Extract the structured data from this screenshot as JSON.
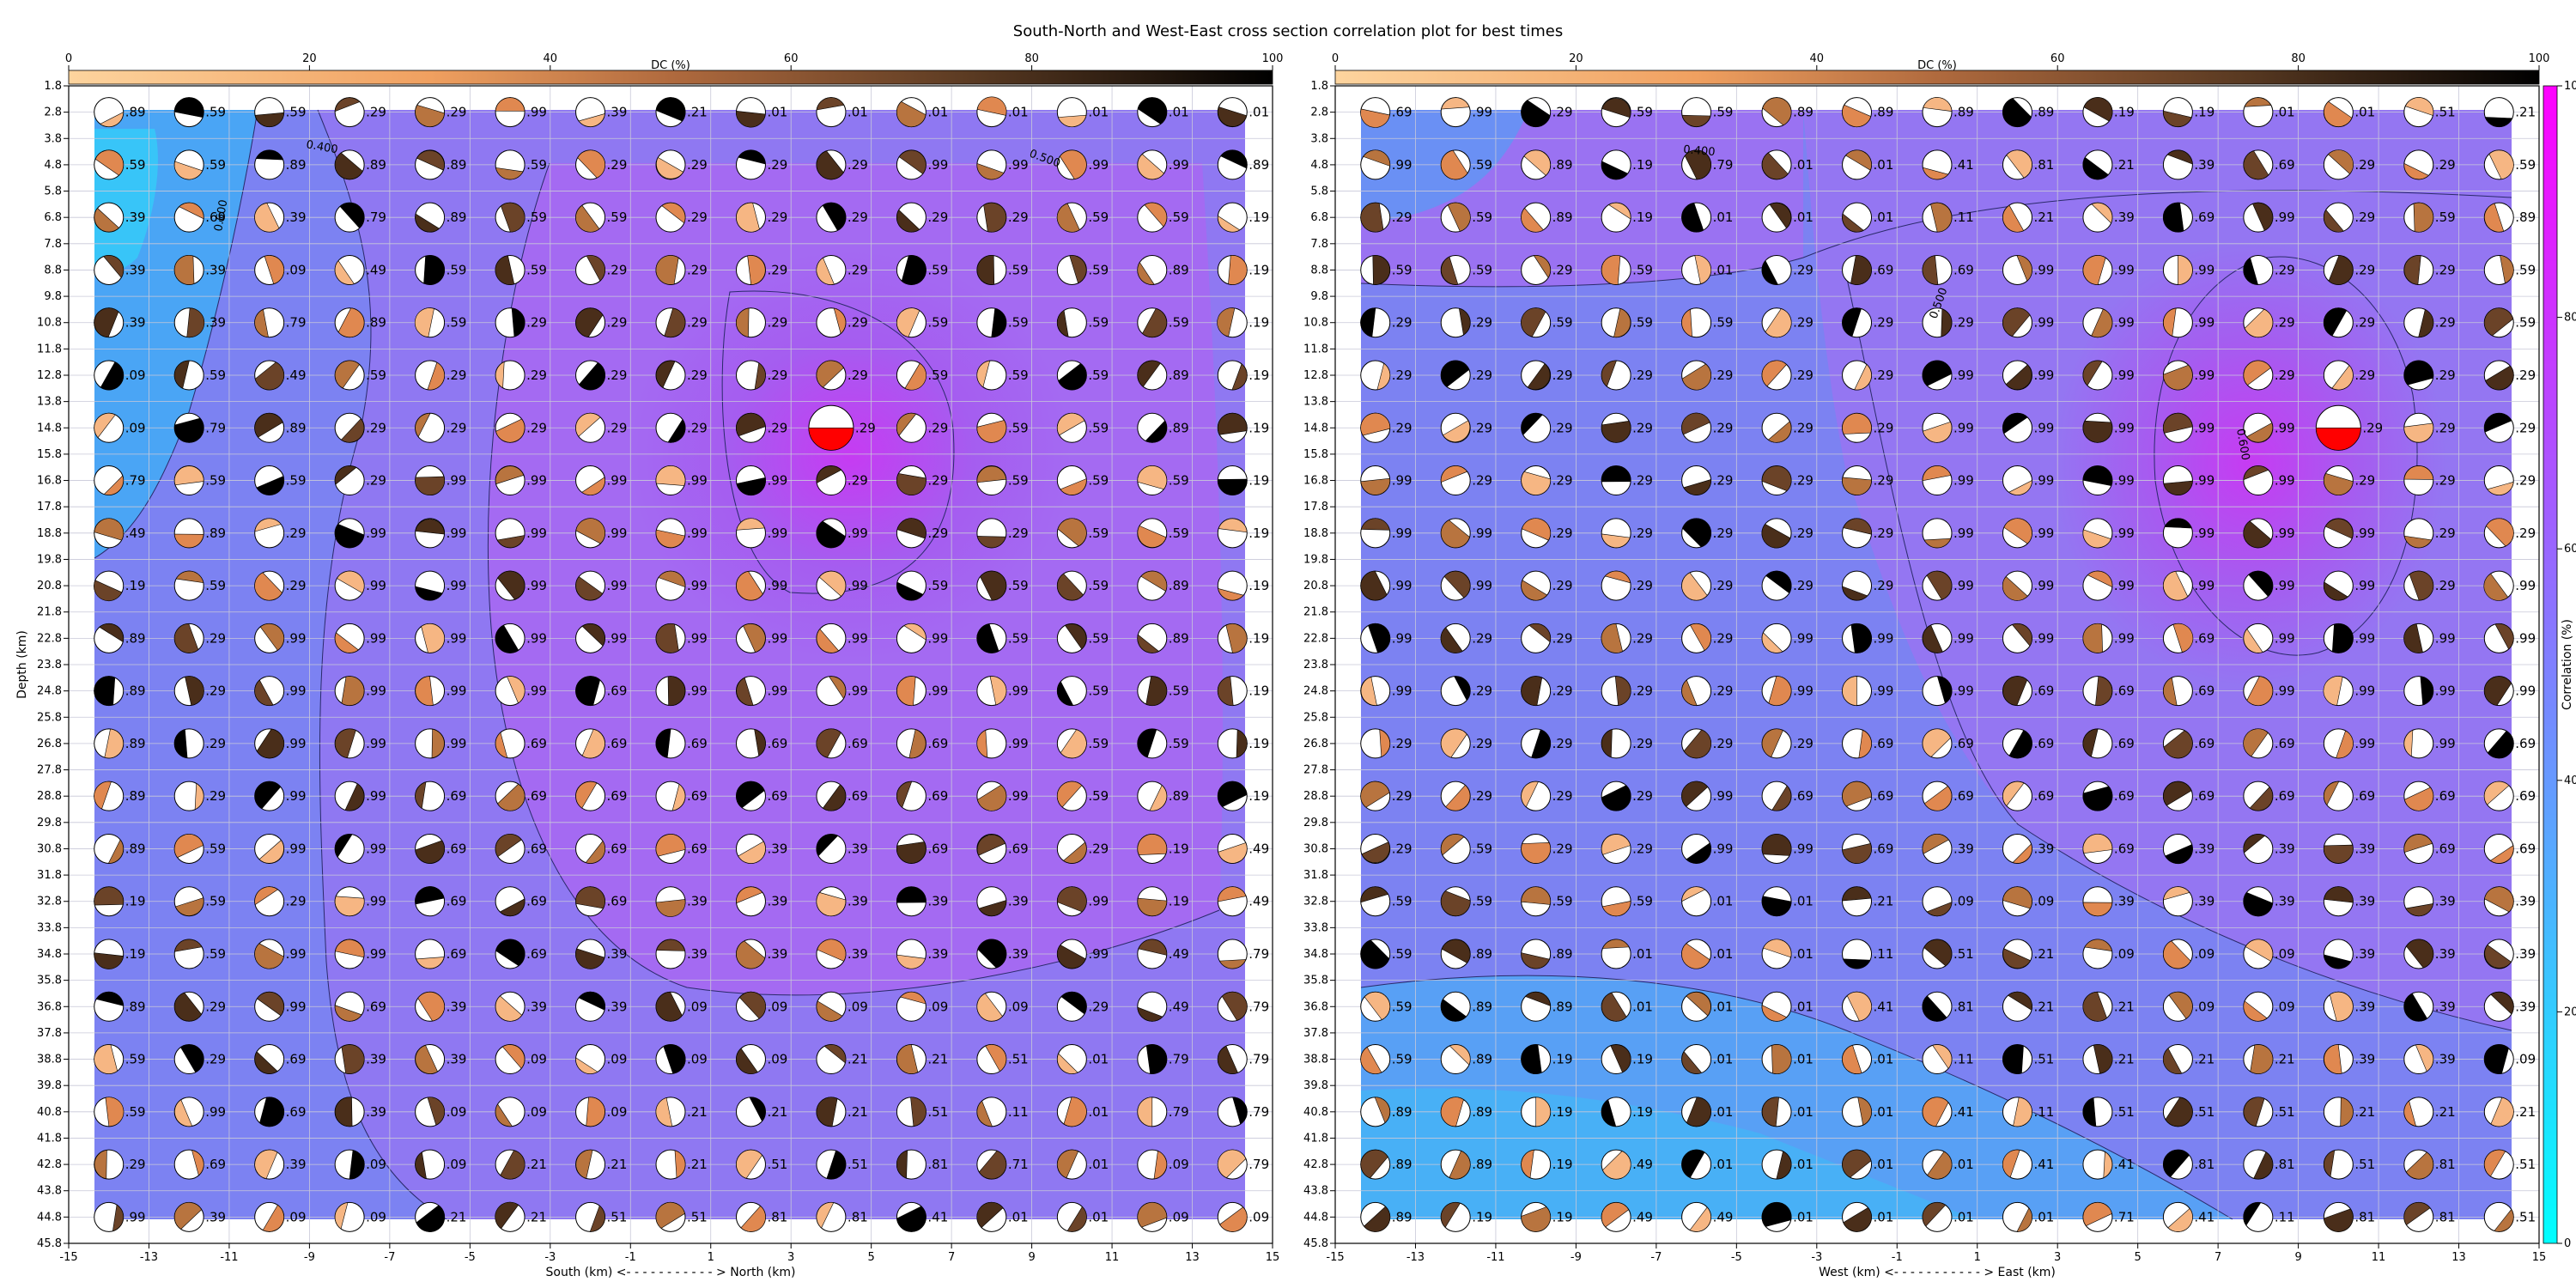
{
  "title": "South-North and West-East cross section correlation plot for best times",
  "colors": {
    "corr_low": "#00ffff",
    "corr_high": "#ff00ff",
    "dc_low": "#fdd49e",
    "dc_mid": "#e08850",
    "dc_dark": "#5a3a22",
    "dc_black": "#000000",
    "best_highlight": "#ff0000"
  },
  "chart_data": [
    {
      "type": "heatmap",
      "panel": "south-north",
      "xlabel": "South (km) <- - - - - - - - - - - > North (km)",
      "ylabel": "Depth (km)",
      "xlim": [
        -15,
        15
      ],
      "ylim": [
        45.8,
        1.8
      ],
      "x_ticks": [
        "-15",
        "-13",
        "-11",
        "-9",
        "-7",
        "-5",
        "-3",
        "-1",
        "1",
        "3",
        "5",
        "7",
        "9",
        "11",
        "13",
        "15"
      ],
      "y_ticks": [
        "1.8",
        "2.8",
        "3.8",
        "4.8",
        "5.8",
        "6.8",
        "7.8",
        "8.8",
        "9.8",
        "10.8",
        "11.8",
        "12.8",
        "13.8",
        "14.8",
        "15.8",
        "16.8",
        "17.8",
        "18.8",
        "19.8",
        "20.8",
        "21.8",
        "22.8",
        "23.8",
        "24.8",
        "25.8",
        "26.8",
        "27.8",
        "28.8",
        "29.8",
        "30.8",
        "31.8",
        "32.8",
        "33.8",
        "34.8",
        "35.8",
        "36.8",
        "37.8",
        "38.8",
        "39.8",
        "40.8",
        "41.8",
        "42.8",
        "43.8",
        "44.8",
        "45.8"
      ],
      "grid": true,
      "x": [
        -14,
        -12,
        -10,
        -8,
        -6,
        -4,
        -2,
        0,
        2,
        4,
        6,
        8,
        10,
        12,
        14
      ],
      "depths": [
        2.8,
        4.8,
        6.8,
        8.8,
        10.8,
        12.8,
        14.8,
        16.8,
        18.8,
        20.8,
        22.8,
        24.8,
        26.8,
        28.8,
        30.8,
        32.8,
        34.8,
        36.8,
        38.8,
        40.8,
        42.8,
        44.8
      ],
      "contour_labels": [
        "0.400",
        "0.500",
        "0.600"
      ],
      "colorbar_top": {
        "label": "DC (%)",
        "ticks": [
          "0",
          "20",
          "40",
          "60",
          "80",
          "100"
        ]
      },
      "best_solution": {
        "x": 4,
        "depth": 14.8,
        "label": ".29"
      },
      "labels": [
        [
          ".89",
          ".59",
          ".59",
          ".29",
          ".29",
          ".99",
          ".39",
          ".21",
          ".01",
          ".01",
          ".01",
          ".01",
          ".01",
          ".01",
          ".01"
        ],
        [
          ".59",
          ".59",
          ".89",
          ".89",
          ".89",
          ".59",
          ".29",
          ".29",
          ".29",
          ".29",
          ".99",
          ".99",
          ".99",
          ".99",
          ".89"
        ],
        [
          ".39",
          ".69",
          ".39",
          ".79",
          ".89",
          ".59",
          ".59",
          ".29",
          ".29",
          ".29",
          ".29",
          ".29",
          ".59",
          ".59",
          ".19"
        ],
        [
          ".39",
          ".39",
          ".09",
          ".49",
          ".59",
          ".59",
          ".29",
          ".29",
          ".29",
          ".29",
          ".59",
          ".59",
          ".59",
          ".89",
          ".19"
        ],
        [
          ".39",
          ".39",
          ".79",
          ".89",
          ".59",
          ".29",
          ".29",
          ".29",
          ".29",
          ".29",
          ".59",
          ".59",
          ".59",
          ".59",
          ".19"
        ],
        [
          ".09",
          ".59",
          ".49",
          ".59",
          ".29",
          ".29",
          ".29",
          ".29",
          ".29",
          ".29",
          ".59",
          ".59",
          ".59",
          ".89",
          ".19"
        ],
        [
          ".09",
          ".79",
          ".89",
          ".29",
          ".29",
          ".29",
          ".29",
          ".29",
          ".29",
          ".29",
          ".29",
          ".59",
          ".59",
          ".89",
          ".19"
        ],
        [
          ".79",
          ".59",
          ".59",
          ".29",
          ".99",
          ".99",
          ".99",
          ".99",
          ".99",
          ".29",
          ".29",
          ".59",
          ".59",
          ".59",
          ".19"
        ],
        [
          ".49",
          ".89",
          ".29",
          ".99",
          ".99",
          ".99",
          ".99",
          ".99",
          ".99",
          ".99",
          ".29",
          ".29",
          ".59",
          ".59",
          ".19"
        ],
        [
          ".19",
          ".59",
          ".29",
          ".99",
          ".99",
          ".99",
          ".99",
          ".99",
          ".99",
          ".99",
          ".59",
          ".59",
          ".59",
          ".89",
          ".19"
        ],
        [
          ".89",
          ".29",
          ".99",
          ".99",
          ".99",
          ".99",
          ".99",
          ".99",
          ".99",
          ".99",
          ".99",
          ".59",
          ".59",
          ".89",
          ".19"
        ],
        [
          ".89",
          ".29",
          ".99",
          ".99",
          ".99",
          ".99",
          ".69",
          ".99",
          ".99",
          ".99",
          ".99",
          ".99",
          ".59",
          ".59",
          ".19"
        ],
        [
          ".89",
          ".29",
          ".99",
          ".99",
          ".99",
          ".69",
          ".69",
          ".69",
          ".69",
          ".69",
          ".69",
          ".99",
          ".59",
          ".59",
          ".19"
        ],
        [
          ".89",
          ".29",
          ".99",
          ".99",
          ".69",
          ".69",
          ".69",
          ".69",
          ".69",
          ".69",
          ".69",
          ".99",
          ".59",
          ".89",
          ".19"
        ],
        [
          ".89",
          ".59",
          ".99",
          ".99",
          ".69",
          ".69",
          ".69",
          ".69",
          ".39",
          ".39",
          ".69",
          ".69",
          ".29",
          ".19",
          ".49"
        ],
        [
          ".19",
          ".59",
          ".29",
          ".99",
          ".69",
          ".69",
          ".69",
          ".39",
          ".39",
          ".39",
          ".39",
          ".39",
          ".99",
          ".19",
          ".49"
        ],
        [
          ".19",
          ".59",
          ".99",
          ".99",
          ".69",
          ".69",
          ".39",
          ".39",
          ".39",
          ".39",
          ".39",
          ".39",
          ".99",
          ".49",
          ".79"
        ],
        [
          ".89",
          ".29",
          ".99",
          ".69",
          ".39",
          ".39",
          ".39",
          ".09",
          ".09",
          ".09",
          ".09",
          ".09",
          ".29",
          ".49",
          ".79"
        ],
        [
          ".59",
          ".29",
          ".69",
          ".39",
          ".39",
          ".09",
          ".09",
          ".09",
          ".09",
          ".21",
          ".21",
          ".51",
          ".01",
          ".79",
          ".79"
        ],
        [
          ".59",
          ".99",
          ".69",
          ".39",
          ".09",
          ".09",
          ".09",
          ".21",
          ".21",
          ".21",
          ".51",
          ".11",
          ".01",
          ".79",
          ".79"
        ],
        [
          ".29",
          ".69",
          ".39",
          ".09",
          ".09",
          ".21",
          ".21",
          ".21",
          ".51",
          ".51",
          ".81",
          ".71",
          ".01",
          ".09",
          ".79"
        ],
        [
          ".99",
          ".39",
          ".09",
          ".09",
          ".21",
          ".21",
          ".51",
          ".51",
          ".81",
          ".81",
          ".41",
          ".01",
          ".01",
          ".09",
          ".09"
        ]
      ]
    },
    {
      "type": "heatmap",
      "panel": "west-east",
      "xlabel": "West (km) <- - - - - - - - - - - > East (km)",
      "ylabel": "",
      "xlim": [
        -15,
        15
      ],
      "ylim": [
        45.8,
        1.8
      ],
      "x_ticks": [
        "-15",
        "-13",
        "-11",
        "-9",
        "-7",
        "-5",
        "-3",
        "-1",
        "1",
        "3",
        "5",
        "7",
        "9",
        "11",
        "13",
        "15"
      ],
      "y_ticks": [
        "1.8",
        "2.8",
        "3.8",
        "4.8",
        "5.8",
        "6.8",
        "7.8",
        "8.8",
        "9.8",
        "10.8",
        "11.8",
        "12.8",
        "13.8",
        "14.8",
        "15.8",
        "16.8",
        "17.8",
        "18.8",
        "19.8",
        "20.8",
        "21.8",
        "22.8",
        "23.8",
        "24.8",
        "25.8",
        "26.8",
        "27.8",
        "28.8",
        "29.8",
        "30.8",
        "31.8",
        "32.8",
        "33.8",
        "34.8",
        "35.8",
        "36.8",
        "37.8",
        "38.8",
        "39.8",
        "40.8",
        "41.8",
        "42.8",
        "43.8",
        "44.8",
        "45.8"
      ],
      "grid": true,
      "x": [
        -14,
        -12,
        -10,
        -8,
        -6,
        -4,
        -2,
        0,
        2,
        4,
        6,
        8,
        10,
        12,
        14
      ],
      "depths": [
        2.8,
        4.8,
        6.8,
        8.8,
        10.8,
        12.8,
        14.8,
        16.8,
        18.8,
        20.8,
        22.8,
        24.8,
        26.8,
        28.8,
        30.8,
        32.8,
        34.8,
        36.8,
        38.8,
        40.8,
        42.8,
        44.8
      ],
      "contour_labels": [
        "0.400",
        "0.500",
        "0.600"
      ],
      "colorbar_top": {
        "label": "DC (%)",
        "ticks": [
          "0",
          "20",
          "40",
          "60",
          "80",
          "100"
        ]
      },
      "colorbar_right": {
        "label": "Correlation (%)",
        "ticks": [
          "0",
          "20",
          "40",
          "60",
          "80",
          "100"
        ]
      },
      "best_solution": {
        "x": 10,
        "depth": 14.8,
        "label": ".29"
      },
      "labels": [
        [
          ".69",
          ".99",
          ".29",
          ".59",
          ".59",
          ".89",
          ".89",
          ".89",
          ".89",
          ".19",
          ".19",
          ".01",
          ".01",
          ".51",
          ".21"
        ],
        [
          ".99",
          ".59",
          ".89",
          ".19",
          ".79",
          ".01",
          ".01",
          ".41",
          ".81",
          ".21",
          ".39",
          ".69",
          ".29",
          ".29",
          ".59"
        ],
        [
          ".29",
          ".59",
          ".89",
          ".19",
          ".01",
          ".01",
          ".01",
          ".11",
          ".21",
          ".39",
          ".69",
          ".99",
          ".29",
          ".59",
          ".89"
        ],
        [
          ".59",
          ".59",
          ".29",
          ".59",
          ".01",
          ".29",
          ".69",
          ".69",
          ".99",
          ".99",
          ".99",
          ".29",
          ".29",
          ".29",
          ".59"
        ],
        [
          ".29",
          ".29",
          ".59",
          ".59",
          ".59",
          ".29",
          ".29",
          ".29",
          ".99",
          ".99",
          ".99",
          ".29",
          ".29",
          ".29",
          ".59"
        ],
        [
          ".29",
          ".29",
          ".29",
          ".29",
          ".29",
          ".29",
          ".29",
          ".99",
          ".99",
          ".99",
          ".99",
          ".29",
          ".29",
          ".29",
          ".29"
        ],
        [
          ".29",
          ".29",
          ".29",
          ".29",
          ".29",
          ".29",
          ".29",
          ".99",
          ".99",
          ".99",
          ".99",
          ".99",
          ".29",
          ".29",
          ".29"
        ],
        [
          ".99",
          ".29",
          ".29",
          ".29",
          ".29",
          ".29",
          ".29",
          ".99",
          ".99",
          ".99",
          ".99",
          ".99",
          ".29",
          ".29",
          ".29"
        ],
        [
          ".99",
          ".99",
          ".29",
          ".29",
          ".29",
          ".29",
          ".29",
          ".99",
          ".99",
          ".99",
          ".99",
          ".99",
          ".99",
          ".29",
          ".29"
        ],
        [
          ".99",
          ".99",
          ".29",
          ".29",
          ".29",
          ".29",
          ".29",
          ".99",
          ".99",
          ".99",
          ".99",
          ".99",
          ".99",
          ".29",
          ".99"
        ],
        [
          ".99",
          ".29",
          ".29",
          ".29",
          ".29",
          ".99",
          ".99",
          ".99",
          ".99",
          ".99",
          ".69",
          ".99",
          ".99",
          ".99",
          ".99"
        ],
        [
          ".99",
          ".29",
          ".29",
          ".29",
          ".29",
          ".99",
          ".99",
          ".99",
          ".69",
          ".69",
          ".69",
          ".99",
          ".99",
          ".99",
          ".99"
        ],
        [
          ".29",
          ".29",
          ".29",
          ".29",
          ".29",
          ".29",
          ".69",
          ".69",
          ".69",
          ".69",
          ".69",
          ".69",
          ".99",
          ".99",
          ".69"
        ],
        [
          ".29",
          ".29",
          ".29",
          ".29",
          ".99",
          ".69",
          ".69",
          ".69",
          ".69",
          ".69",
          ".69",
          ".69",
          ".69",
          ".69",
          ".69"
        ],
        [
          ".29",
          ".59",
          ".29",
          ".29",
          ".99",
          ".99",
          ".69",
          ".39",
          ".39",
          ".69",
          ".39",
          ".39",
          ".39",
          ".69",
          ".69"
        ],
        [
          ".59",
          ".59",
          ".59",
          ".59",
          ".01",
          ".01",
          ".21",
          ".09",
          ".09",
          ".39",
          ".39",
          ".39",
          ".39",
          ".39",
          ".39"
        ],
        [
          ".59",
          ".89",
          ".89",
          ".01",
          ".01",
          ".01",
          ".11",
          ".51",
          ".21",
          ".09",
          ".09",
          ".09",
          ".39",
          ".39",
          ".39"
        ],
        [
          ".59",
          ".89",
          ".89",
          ".01",
          ".01",
          ".01",
          ".41",
          ".81",
          ".21",
          ".21",
          ".09",
          ".09",
          ".39",
          ".39",
          ".39"
        ],
        [
          ".59",
          ".89",
          ".19",
          ".19",
          ".01",
          ".01",
          ".01",
          ".11",
          ".51",
          ".21",
          ".21",
          ".21",
          ".39",
          ".39",
          ".09"
        ],
        [
          ".89",
          ".89",
          ".19",
          ".19",
          ".01",
          ".01",
          ".01",
          ".41",
          ".11",
          ".51",
          ".51",
          ".51",
          ".21",
          ".21",
          ".21"
        ],
        [
          ".89",
          ".89",
          ".19",
          ".49",
          ".01",
          ".01",
          ".01",
          ".01",
          ".41",
          ".41",
          ".81",
          ".81",
          ".51",
          ".81",
          ".51"
        ],
        [
          ".89",
          ".19",
          ".19",
          ".49",
          ".49",
          ".01",
          ".01",
          ".01",
          ".01",
          ".71",
          ".41",
          ".11",
          ".81",
          ".81",
          ".51"
        ]
      ]
    }
  ]
}
